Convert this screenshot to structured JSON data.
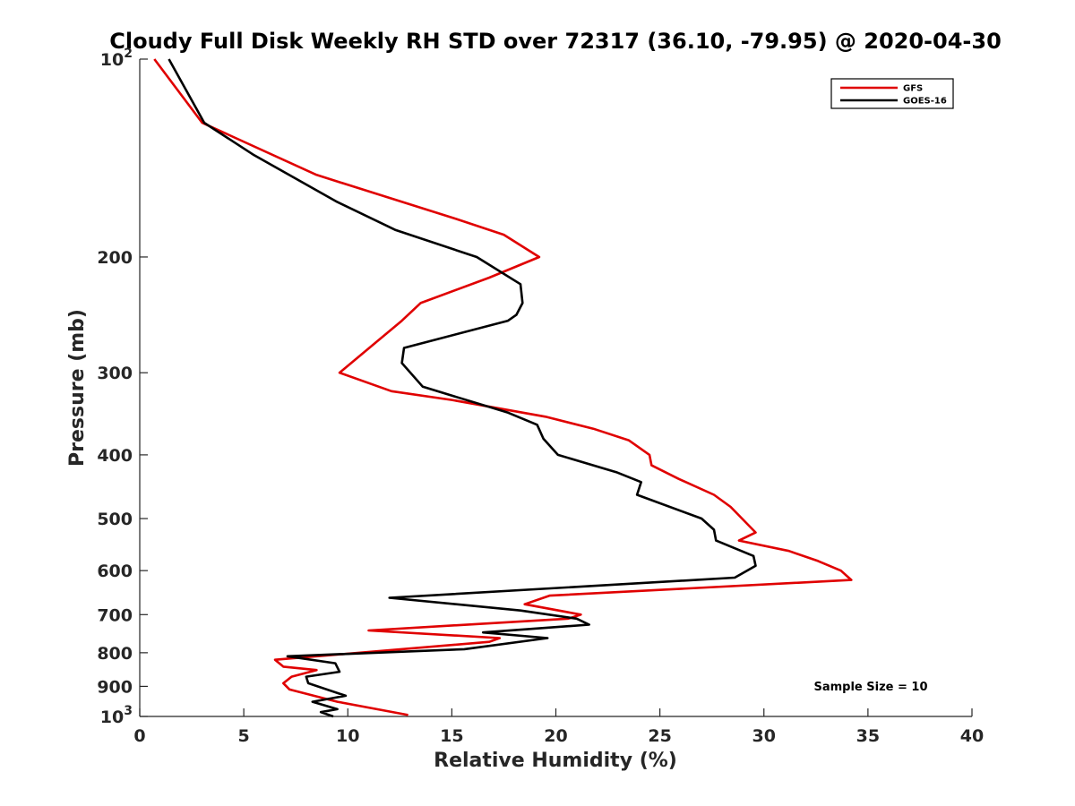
{
  "chart_data": {
    "type": "line",
    "title": "Cloudy Full Disk Weekly RH STD over 72317 (36.10, -79.95) @ 2020-04-30",
    "xlabel": "Relative Humidity (%)",
    "ylabel": "Pressure (mb)",
    "xlim": [
      0,
      40
    ],
    "ylim": [
      100,
      1000
    ],
    "y_scale": "log",
    "y_reversed": true,
    "x_ticks": [
      "0",
      "5",
      "10",
      "15",
      "20",
      "25",
      "30",
      "35",
      "40"
    ],
    "y_ticks": [
      {
        "value": 100,
        "base": "10",
        "exp": "2"
      },
      {
        "value": 200,
        "label": "200"
      },
      {
        "value": 300,
        "label": "300"
      },
      {
        "value": 400,
        "label": "400"
      },
      {
        "value": 500,
        "label": "500"
      },
      {
        "value": 600,
        "label": "600"
      },
      {
        "value": 700,
        "label": "700"
      },
      {
        "value": 800,
        "label": "800"
      },
      {
        "value": 900,
        "label": "900"
      },
      {
        "value": 1000,
        "base": "10",
        "exp": "3"
      }
    ],
    "grid": false,
    "legend_position": "top-right",
    "annotation": "Sample Size = 10",
    "series": [
      {
        "name": "GFS",
        "color": "#e00000",
        "points": [
          [
            0.7,
            100
          ],
          [
            3.0,
            125
          ],
          [
            8.5,
            150
          ],
          [
            15.2,
            175
          ],
          [
            17.5,
            185
          ],
          [
            19.2,
            200
          ],
          [
            16.8,
            215
          ],
          [
            13.5,
            235
          ],
          [
            12.6,
            250
          ],
          [
            9.6,
            300
          ],
          [
            12.1,
            320
          ],
          [
            15.0,
            330
          ],
          [
            19.5,
            350
          ],
          [
            21.8,
            365
          ],
          [
            23.5,
            380
          ],
          [
            24.5,
            400
          ],
          [
            24.6,
            415
          ],
          [
            25.9,
            435
          ],
          [
            27.6,
            460
          ],
          [
            28.4,
            480
          ],
          [
            29.6,
            525
          ],
          [
            28.8,
            540
          ],
          [
            31.2,
            560
          ],
          [
            32.6,
            580
          ],
          [
            33.7,
            600
          ],
          [
            34.2,
            620
          ],
          [
            19.7,
            655
          ],
          [
            18.5,
            675
          ],
          [
            21.2,
            700
          ],
          [
            20.6,
            710
          ],
          [
            11.0,
            740
          ],
          [
            17.3,
            760
          ],
          [
            16.8,
            770
          ],
          [
            6.5,
            820
          ],
          [
            6.9,
            840
          ],
          [
            8.5,
            850
          ],
          [
            7.3,
            870
          ],
          [
            6.9,
            890
          ],
          [
            7.2,
            910
          ],
          [
            9.5,
            950
          ],
          [
            12.9,
            995
          ]
        ]
      },
      {
        "name": "GOES-16",
        "color": "#000000",
        "points": [
          [
            1.4,
            100
          ],
          [
            3.1,
            125
          ],
          [
            5.5,
            140
          ],
          [
            9.5,
            165
          ],
          [
            12.3,
            182
          ],
          [
            16.2,
            200
          ],
          [
            18.3,
            220
          ],
          [
            18.4,
            235
          ],
          [
            18.1,
            245
          ],
          [
            17.7,
            250
          ],
          [
            12.7,
            275
          ],
          [
            12.6,
            290
          ],
          [
            13.6,
            315
          ],
          [
            17.7,
            345
          ],
          [
            19.1,
            360
          ],
          [
            19.4,
            378
          ],
          [
            20.1,
            400
          ],
          [
            22.9,
            425
          ],
          [
            24.1,
            440
          ],
          [
            23.9,
            460
          ],
          [
            27.0,
            500
          ],
          [
            27.6,
            520
          ],
          [
            27.7,
            540
          ],
          [
            29.5,
            570
          ],
          [
            29.6,
            590
          ],
          [
            28.6,
            615
          ],
          [
            12.0,
            660
          ],
          [
            18.3,
            690
          ],
          [
            21.0,
            710
          ],
          [
            21.6,
            725
          ],
          [
            16.5,
            745
          ],
          [
            19.6,
            760
          ],
          [
            15.6,
            790
          ],
          [
            7.1,
            810
          ],
          [
            9.4,
            830
          ],
          [
            9.6,
            855
          ],
          [
            8.0,
            870
          ],
          [
            8.1,
            890
          ],
          [
            9.9,
            930
          ],
          [
            8.3,
            950
          ],
          [
            9.5,
            975
          ],
          [
            8.7,
            985
          ],
          [
            9.3,
            1000
          ]
        ]
      }
    ]
  }
}
